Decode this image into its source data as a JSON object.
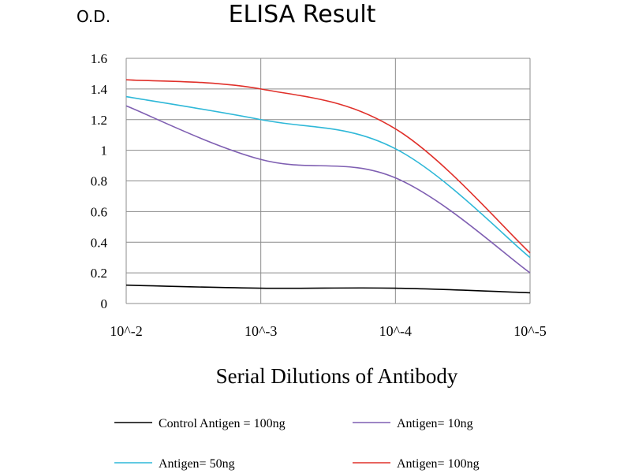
{
  "chart_data": {
    "type": "line",
    "title": "ELISA Result",
    "ylabel": "O.D.",
    "xlabel": "Serial Dilutions of Antibody",
    "categories": [
      "10^-2",
      "10^-3",
      "10^-4",
      "10^-5"
    ],
    "ylim": [
      0,
      1.6
    ],
    "yticks": [
      "0",
      "0.2",
      "0.4",
      "0.6",
      "0.8",
      "1",
      "1.2",
      "1.4",
      "1.6"
    ],
    "grid": true,
    "legend_position": "bottom",
    "series": [
      {
        "name": "Control Antigen = 100ng",
        "color": "#000000",
        "values": [
          0.12,
          0.1,
          0.1,
          0.07
        ]
      },
      {
        "name": "Antigen= 10ng",
        "color": "#7f5fb2",
        "values": [
          1.29,
          0.94,
          0.82,
          0.2
        ]
      },
      {
        "name": "Antigen= 50ng",
        "color": "#2fb8d8",
        "values": [
          1.35,
          1.2,
          1.01,
          0.3
        ]
      },
      {
        "name": "Antigen= 100ng",
        "color": "#e0302a",
        "values": [
          1.46,
          1.4,
          1.14,
          0.33
        ]
      }
    ]
  }
}
